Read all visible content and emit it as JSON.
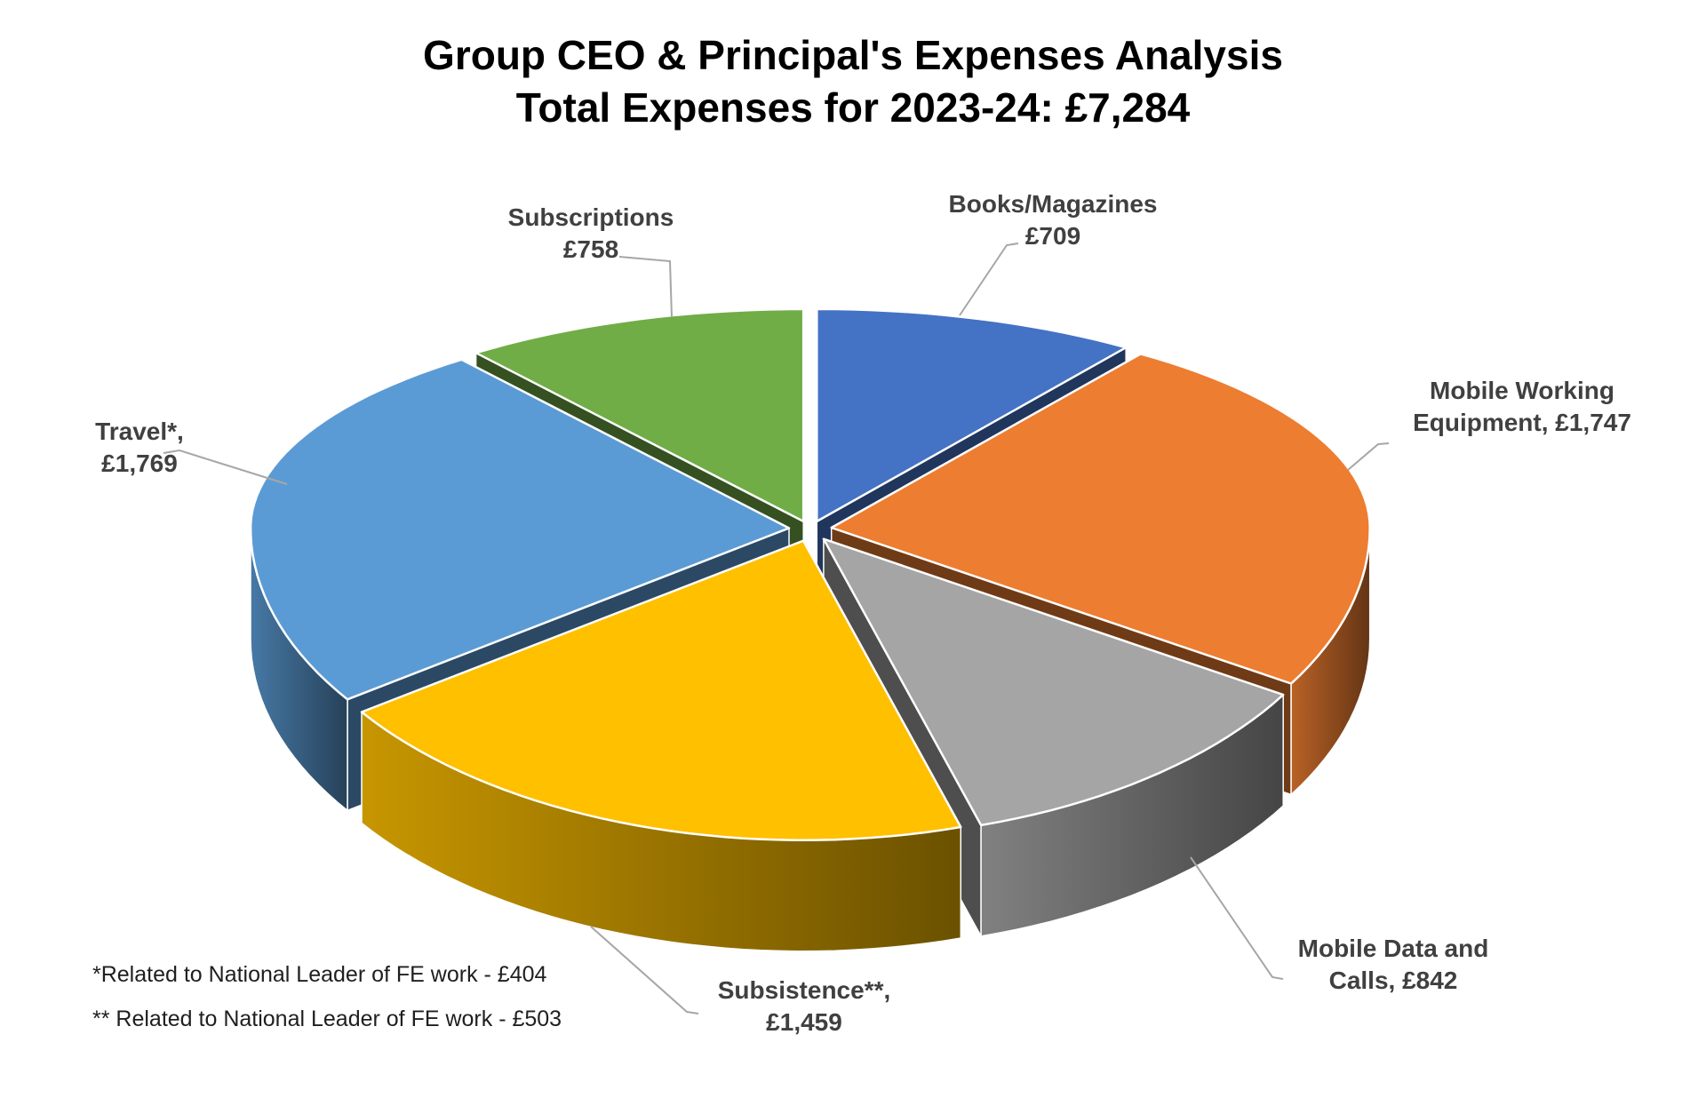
{
  "chart": {
    "title_line1": "Group CEO & Principal's Expenses Analysis",
    "title_line2": "Total Expenses for 2023-24: £7,284",
    "footnote1": "*Related to National Leader of FE work - £404",
    "footnote2": "** Related to National Leader of FE work - £503"
  },
  "chart_data": {
    "type": "pie",
    "style": "3d-exploded",
    "title": "Group CEO & Principal's Expenses Analysis",
    "subtitle": "Total Expenses for 2023-24: £7,284",
    "total": 7284,
    "currency": "£",
    "start_angle_deg": 0,
    "direction": "clockwise",
    "legend": "none",
    "background": "#ffffff",
    "label_color": "#404040",
    "leader_line_color": "#A6A6A6",
    "segments": [
      {
        "id": "books",
        "name": "Books/Magazines",
        "value": 709,
        "color": "#4472C4",
        "label_lines": [
          "Books/Magazines",
          "£709"
        ]
      },
      {
        "id": "mobile-working-equipment",
        "name": "Mobile Working Equipment",
        "value": 1747,
        "color": "#ED7D31",
        "label_lines": [
          "Mobile Working",
          "Equipment, £1,747"
        ]
      },
      {
        "id": "mobile-data-and-calls",
        "name": "Mobile Data and Calls",
        "value": 842,
        "color": "#A5A5A5",
        "label_lines": [
          "Mobile Data and",
          "Calls, £842"
        ]
      },
      {
        "id": "subsistence",
        "name": "Subsistence**",
        "value": 1459,
        "color": "#FFC000",
        "label_lines": [
          "Subsistence**,",
          "£1,459"
        ]
      },
      {
        "id": "travel",
        "name": "Travel*",
        "value": 1769,
        "color": "#5B9BD5",
        "label_lines": [
          "Travel*,",
          "£1,769"
        ]
      },
      {
        "id": "subscriptions",
        "name": "Subscriptions",
        "value": 758,
        "color": "#70AD47",
        "label_lines": [
          "Subscriptions",
          "£758"
        ]
      }
    ],
    "footnotes": [
      "*Related to National Leader of FE work - £404",
      "** Related to National Leader of FE work - £503"
    ]
  }
}
